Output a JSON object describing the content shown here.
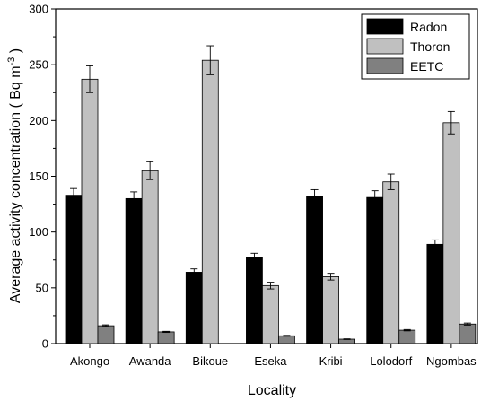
{
  "chart_data": {
    "type": "bar",
    "title": "",
    "xlabel": "Locality",
    "ylabel_main": "Average activity concentration ( Bq m",
    "ylabel_sup": "-3",
    "ylabel_tail": " )",
    "ylim": [
      0,
      300
    ],
    "yticks": [
      0,
      50,
      100,
      150,
      200,
      250,
      300
    ],
    "categories": [
      "Akongo",
      "Awanda",
      "Bikoue",
      "Eseka",
      "Kribi",
      "Lolodorf",
      "Ngombas"
    ],
    "series": [
      {
        "name": "Radon",
        "color": "#000000",
        "values": [
          133,
          130,
          64,
          77,
          132,
          131,
          89
        ],
        "errors": [
          6,
          6,
          3,
          4,
          6,
          6,
          4
        ]
      },
      {
        "name": "Thoron",
        "color": "#c0c0c0",
        "values": [
          237,
          155,
          254,
          52,
          60,
          145,
          198
        ],
        "errors": [
          12,
          8,
          13,
          3,
          3,
          7,
          10
        ]
      },
      {
        "name": "EETC",
        "color": "#808080",
        "values": [
          16,
          10.5,
          null,
          7,
          4,
          12,
          17.5
        ],
        "errors": [
          0.8,
          0.5,
          null,
          0.4,
          0.3,
          0.6,
          0.9
        ]
      }
    ],
    "legend_position": "top-right",
    "grid": false
  }
}
